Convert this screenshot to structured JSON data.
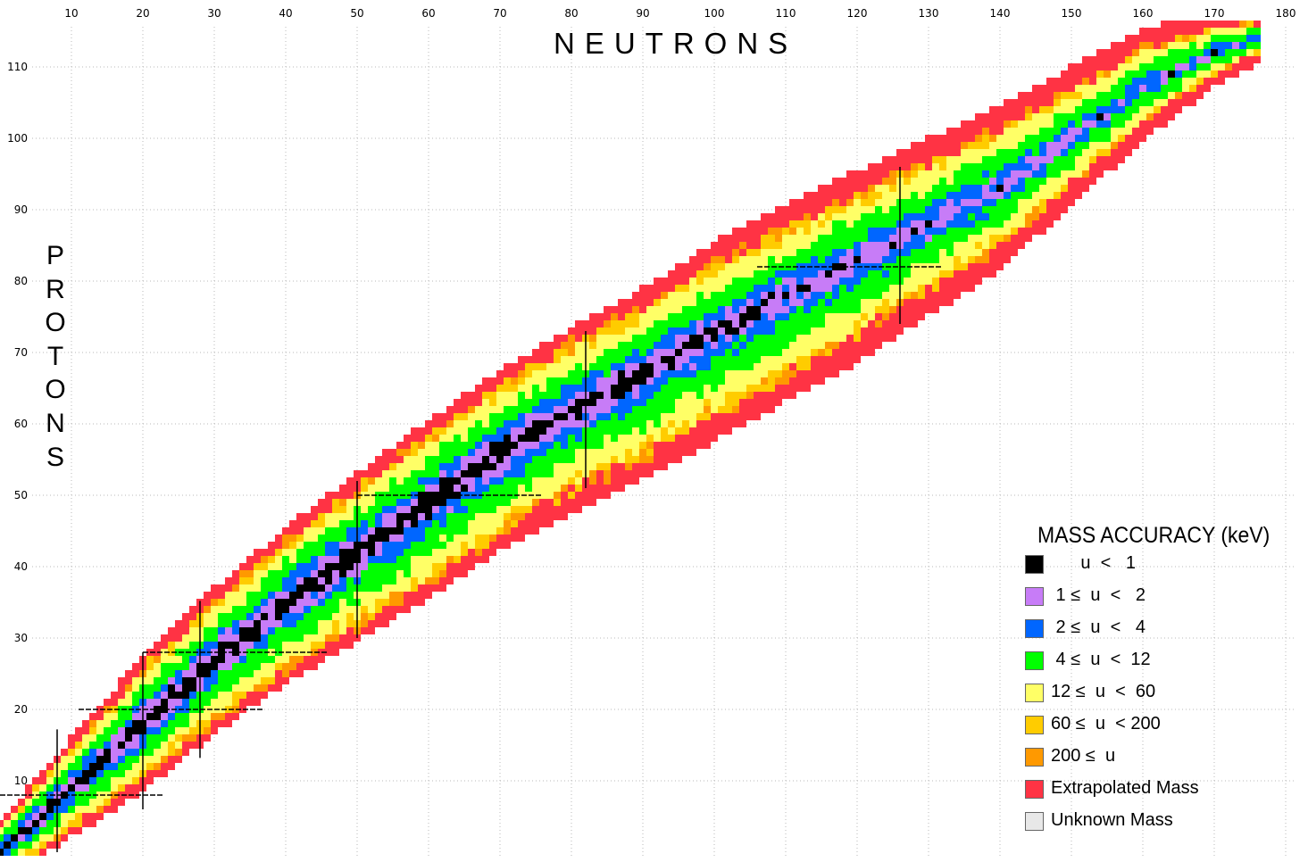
{
  "chart_data": {
    "type": "heatmap",
    "xlabel": "NEUTRONS",
    "ylabel": "PROTONS",
    "xlim": [
      0,
      182
    ],
    "ylim": [
      0,
      117
    ],
    "x_ticks": [
      10,
      20,
      30,
      40,
      50,
      60,
      70,
      80,
      90,
      100,
      110,
      120,
      130,
      140,
      150,
      160,
      170,
      180
    ],
    "y_ticks": [
      10,
      20,
      30,
      40,
      50,
      60,
      70,
      80,
      90,
      100,
      110
    ],
    "x_tick_labels": [
      "10",
      "20",
      "30",
      "40",
      "50",
      "60",
      "70",
      "80",
      "90",
      "100",
      "110",
      "120",
      "130",
      "140",
      "150",
      "160",
      "170",
      "180"
    ],
    "y_tick_labels": [
      "10",
      "20",
      "30",
      "40",
      "50",
      "60",
      "70",
      "80",
      "90",
      "100",
      "110"
    ],
    "grid": true,
    "magic_numbers": [
      8,
      20,
      28,
      50,
      82,
      126
    ],
    "legend": {
      "title": "MASS ACCURACY (keV)",
      "placement": "bottom-right",
      "items": [
        {
          "key": "lt1",
          "label": "      u  <   1",
          "color": "#000000"
        },
        {
          "key": "1to2",
          "label": " 1 ≤  u  <   2",
          "color": "#c77cf7"
        },
        {
          "key": "2to4",
          "label": " 2 ≤  u  <   4",
          "color": "#0066ff"
        },
        {
          "key": "4to12",
          "label": " 4 ≤  u  <  12",
          "color": "#00ff00"
        },
        {
          "key": "12to60",
          "label": "12 ≤  u  <  60",
          "color": "#ffff66"
        },
        {
          "key": "60to200",
          "label": "60 ≤  u  < 200",
          "color": "#ffcc00"
        },
        {
          "key": "ge200",
          "label": "200 ≤  u",
          "color": "#ff9900"
        },
        {
          "key": "extrapolated",
          "label": "Extrapolated Mass",
          "color": "#ff3344"
        },
        {
          "key": "unknown",
          "label": "Unknown Mass",
          "color": "#e8e8e8"
        }
      ]
    },
    "stability_line": [
      [
        0,
        0
      ],
      [
        10,
        9
      ],
      [
        20,
        18
      ],
      [
        30,
        27
      ],
      [
        40,
        35
      ],
      [
        50,
        42
      ],
      [
        60,
        49
      ],
      [
        70,
        56
      ],
      [
        80,
        62
      ],
      [
        90,
        67
      ],
      [
        100,
        73
      ],
      [
        110,
        78
      ],
      [
        120,
        83
      ],
      [
        130,
        88
      ],
      [
        140,
        93
      ],
      [
        150,
        100
      ],
      [
        160,
        107
      ],
      [
        170,
        112
      ],
      [
        176,
        114
      ]
    ],
    "band_half_width": {
      "x": [
        0,
        20,
        40,
        60,
        80,
        100,
        120,
        140,
        160,
        176
      ],
      "proton_rich": [
        4,
        9,
        10,
        11,
        11,
        12,
        12,
        11,
        8,
        3
      ],
      "neutron_rich": [
        4,
        9,
        11,
        13,
        14,
        15,
        14,
        11,
        7,
        3
      ]
    },
    "zones": [
      {
        "from": 0,
        "to": 0.1,
        "key": "lt1"
      },
      {
        "from": 0.1,
        "to": 0.2,
        "key": "1to2"
      },
      {
        "from": 0.2,
        "to": 0.32,
        "key": "2to4"
      },
      {
        "from": 0.32,
        "to": 0.55,
        "key": "4to12"
      },
      {
        "from": 0.55,
        "to": 0.75,
        "key": "12to60"
      },
      {
        "from": 0.75,
        "to": 0.82,
        "key": "60to200"
      },
      {
        "from": 0.82,
        "to": 0.86,
        "key": "ge200"
      },
      {
        "from": 0.86,
        "to": 1.0,
        "key": "extrapolated"
      }
    ]
  }
}
